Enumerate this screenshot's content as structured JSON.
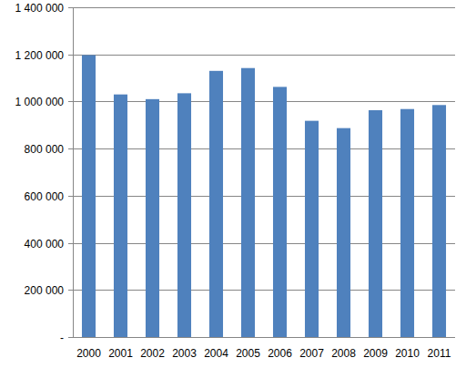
{
  "chart_data": {
    "type": "bar",
    "categories": [
      "2000",
      "2001",
      "2002",
      "2003",
      "2004",
      "2005",
      "2006",
      "2007",
      "2008",
      "2009",
      "2010",
      "2011"
    ],
    "values": [
      1197000,
      1030000,
      1010000,
      1035000,
      1130000,
      1142000,
      1062000,
      918000,
      887000,
      963000,
      968000,
      985000
    ],
    "color": "#4f81bd",
    "ylim": [
      0,
      1400000
    ],
    "yticks": [
      {
        "value": 0,
        "label": "-"
      },
      {
        "value": 200000,
        "label": "200 000"
      },
      {
        "value": 400000,
        "label": "400 000"
      },
      {
        "value": 600000,
        "label": "600 000"
      },
      {
        "value": 800000,
        "label": "800 000"
      },
      {
        "value": 1000000,
        "label": "1 000 000"
      },
      {
        "value": 1200000,
        "label": "1 200 000"
      },
      {
        "value": 1400000,
        "label": "1 400 000"
      }
    ],
    "grid": true
  }
}
